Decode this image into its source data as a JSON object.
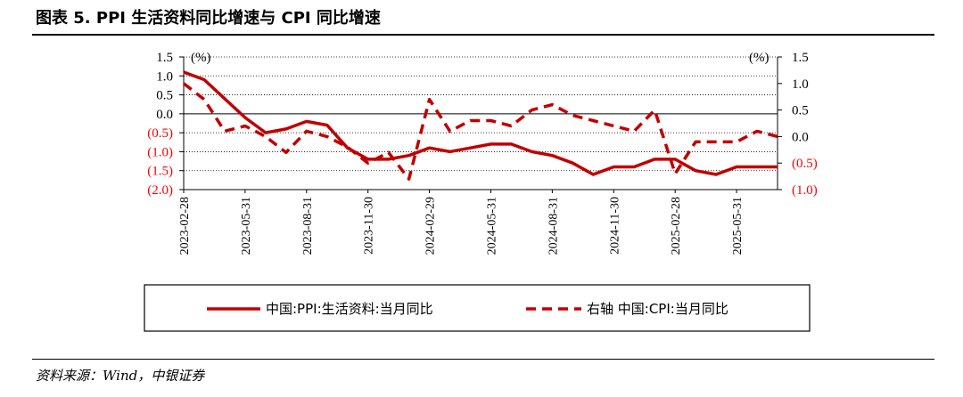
{
  "header": {
    "title": "图表 5. PPI 生活资料同比增速与 CPI 同比增速"
  },
  "footer": {
    "source": "资料来源：Wind，中银证券"
  },
  "chart_data": {
    "type": "line",
    "left_unit": "(%)",
    "right_unit": "(%)",
    "left_ticks": [
      "1.5",
      "1.0",
      "0.5",
      "0.0",
      "(0.5)",
      "(1.0)",
      "(1.5)",
      "(2.0)"
    ],
    "left_tick_values": [
      1.5,
      1.0,
      0.5,
      0.0,
      -0.5,
      -1.0,
      -1.5,
      -2.0
    ],
    "right_ticks": [
      "1.5",
      "1.0",
      "0.5",
      "0.0",
      "(0.5)",
      "(1.0)"
    ],
    "right_tick_values": [
      1.5,
      1.0,
      0.5,
      0.0,
      -0.5,
      -1.0
    ],
    "negative_tick_color": "#ff0000",
    "ylim_left": [
      -2.0,
      1.5
    ],
    "ylim_right": [
      -1.0,
      1.5
    ],
    "x_tick_labels": [
      "2023-02-28",
      "2023-05-31",
      "2023-08-31",
      "2023-11-30",
      "2024-02-29",
      "2024-05-31",
      "2024-08-31",
      "2024-11-30",
      "2025-02-28",
      "2025-05-31"
    ],
    "x_tick_index": [
      0,
      3,
      6,
      9,
      12,
      15,
      18,
      21,
      24,
      27
    ],
    "x": [
      "2023-02",
      "2023-03",
      "2023-04",
      "2023-05",
      "2023-06",
      "2023-07",
      "2023-08",
      "2023-09",
      "2023-10",
      "2023-11",
      "2023-12",
      "2024-01",
      "2024-02",
      "2024-03",
      "2024-04",
      "2024-05",
      "2024-06",
      "2024-07",
      "2024-08",
      "2024-09",
      "2024-10",
      "2024-11",
      "2024-12",
      "2025-01",
      "2025-02",
      "2025-03",
      "2025-04",
      "2025-05",
      "2025-06",
      "2025-07"
    ],
    "series": [
      {
        "name": "中国:PPI:生活资料:当月同比",
        "axis": "left",
        "color": "#c00000",
        "dash": "solid",
        "values": [
          1.1,
          0.9,
          0.4,
          -0.1,
          -0.5,
          -0.4,
          -0.2,
          -0.3,
          -0.9,
          -1.2,
          -1.2,
          -1.1,
          -0.9,
          -1.0,
          -0.9,
          -0.8,
          -0.8,
          -1.0,
          -1.1,
          -1.3,
          -1.6,
          -1.4,
          -1.4,
          -1.2,
          -1.2,
          -1.5,
          -1.6,
          -1.4,
          -1.4,
          -1.4
        ]
      },
      {
        "name": "右轴 中国:CPI:当月同比",
        "axis": "right",
        "color": "#c00000",
        "dash": "dashed",
        "values": [
          1.0,
          0.7,
          0.1,
          0.2,
          0.0,
          -0.3,
          0.1,
          0.0,
          -0.2,
          -0.5,
          -0.3,
          -0.8,
          0.7,
          0.1,
          0.3,
          0.3,
          0.2,
          0.5,
          0.6,
          0.4,
          0.3,
          0.2,
          0.1,
          0.5,
          -0.7,
          -0.1,
          -0.1,
          -0.1,
          0.1,
          0.0
        ]
      }
    ],
    "grid": "horizontal-dotted",
    "legend_position": "bottom"
  }
}
